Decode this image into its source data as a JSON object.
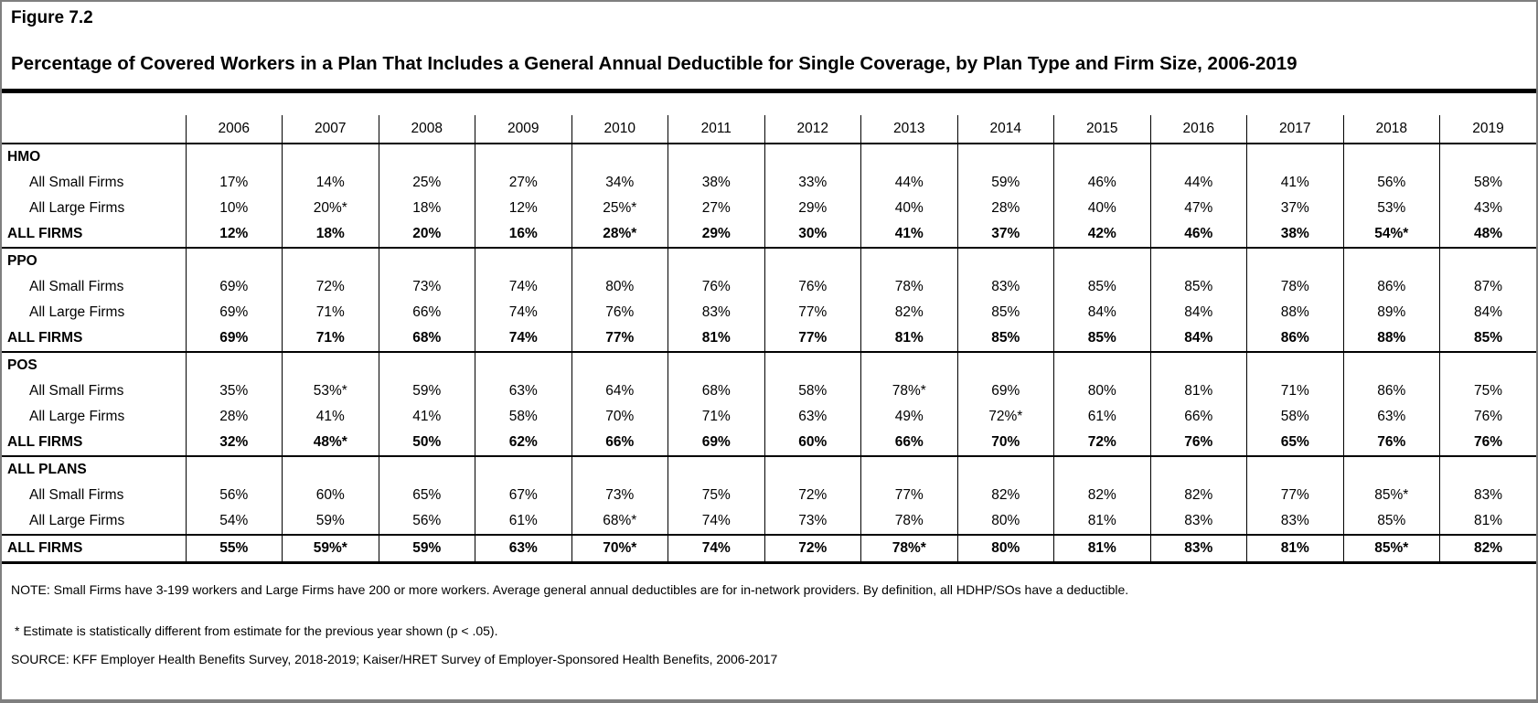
{
  "figure": {
    "label": "Figure 7.2",
    "title": "Percentage of Covered Workers in a Plan That Includes a General Annual Deductible for Single Coverage, by Plan Type and Firm Size, 2006-2019"
  },
  "chart_data": {
    "type": "table",
    "unit": "percent of covered workers",
    "years": [
      "2006",
      "2007",
      "2008",
      "2009",
      "2010",
      "2011",
      "2012",
      "2013",
      "2014",
      "2015",
      "2016",
      "2017",
      "2018",
      "2019"
    ],
    "sections": [
      {
        "name": "HMO",
        "rows": [
          {
            "label": "All Small Firms",
            "indent": true,
            "bold": false,
            "line_above": false,
            "values": [
              "17%",
              "14%",
              "25%",
              "27%",
              "34%",
              "38%",
              "33%",
              "44%",
              "59%",
              "46%",
              "44%",
              "41%",
              "56%",
              "58%"
            ]
          },
          {
            "label": "All Large Firms",
            "indent": true,
            "bold": false,
            "line_above": false,
            "values": [
              "10%",
              "20%*",
              "18%",
              "12%",
              "25%*",
              "27%",
              "29%",
              "40%",
              "28%",
              "40%",
              "47%",
              "37%",
              "53%",
              "43%"
            ]
          },
          {
            "label": "ALL FIRMS",
            "indent": false,
            "bold": true,
            "line_above": false,
            "values": [
              "12%",
              "18%",
              "20%",
              "16%",
              "28%*",
              "29%",
              "30%",
              "41%",
              "37%",
              "42%",
              "46%",
              "38%",
              "54%*",
              "48%"
            ]
          }
        ]
      },
      {
        "name": "PPO",
        "rows": [
          {
            "label": "All Small Firms",
            "indent": true,
            "bold": false,
            "line_above": false,
            "values": [
              "69%",
              "72%",
              "73%",
              "74%",
              "80%",
              "76%",
              "76%",
              "78%",
              "83%",
              "85%",
              "85%",
              "78%",
              "86%",
              "87%"
            ]
          },
          {
            "label": "All Large Firms",
            "indent": true,
            "bold": false,
            "line_above": false,
            "values": [
              "69%",
              "71%",
              "66%",
              "74%",
              "76%",
              "83%",
              "77%",
              "82%",
              "85%",
              "84%",
              "84%",
              "88%",
              "89%",
              "84%"
            ]
          },
          {
            "label": "ALL FIRMS",
            "indent": false,
            "bold": true,
            "line_above": false,
            "values": [
              "69%",
              "71%",
              "68%",
              "74%",
              "77%",
              "81%",
              "77%",
              "81%",
              "85%",
              "85%",
              "84%",
              "86%",
              "88%",
              "85%"
            ]
          }
        ]
      },
      {
        "name": "POS",
        "rows": [
          {
            "label": "All Small Firms",
            "indent": true,
            "bold": false,
            "line_above": false,
            "values": [
              "35%",
              "53%*",
              "59%",
              "63%",
              "64%",
              "68%",
              "58%",
              "78%*",
              "69%",
              "80%",
              "81%",
              "71%",
              "86%",
              "75%"
            ]
          },
          {
            "label": "All Large Firms",
            "indent": true,
            "bold": false,
            "line_above": false,
            "values": [
              "28%",
              "41%",
              "41%",
              "58%",
              "70%",
              "71%",
              "63%",
              "49%",
              "72%*",
              "61%",
              "66%",
              "58%",
              "63%",
              "76%"
            ]
          },
          {
            "label": "ALL FIRMS",
            "indent": false,
            "bold": true,
            "line_above": false,
            "values": [
              "32%",
              "48%*",
              "50%",
              "62%",
              "66%",
              "69%",
              "60%",
              "66%",
              "70%",
              "72%",
              "76%",
              "65%",
              "76%",
              "76%"
            ]
          }
        ]
      },
      {
        "name": "ALL PLANS",
        "rows": [
          {
            "label": "All Small Firms",
            "indent": true,
            "bold": false,
            "line_above": false,
            "values": [
              "56%",
              "60%",
              "65%",
              "67%",
              "73%",
              "75%",
              "72%",
              "77%",
              "82%",
              "82%",
              "82%",
              "77%",
              "85%*",
              "83%"
            ]
          },
          {
            "label": "All Large Firms",
            "indent": true,
            "bold": false,
            "line_above": false,
            "values": [
              "54%",
              "59%",
              "56%",
              "61%",
              "68%*",
              "74%",
              "73%",
              "78%",
              "80%",
              "81%",
              "83%",
              "83%",
              "85%",
              "81%"
            ]
          },
          {
            "label": "ALL FIRMS",
            "indent": false,
            "bold": true,
            "line_above": true,
            "values": [
              "55%",
              "59%*",
              "59%",
              "63%",
              "70%*",
              "74%",
              "72%",
              "78%*",
              "80%",
              "81%",
              "83%",
              "81%",
              "85%*",
              "82%"
            ]
          }
        ]
      }
    ]
  },
  "notes": {
    "note": "NOTE: Small Firms have 3-199 workers and Large Firms have 200 or more workers. Average general annual deductibles are for in-network providers. By definition, all HDHP/SOs have a deductible.",
    "asterisk": "* Estimate is statistically different from estimate for the previous year shown (p < .05).",
    "source": "SOURCE: KFF Employer Health Benefits Survey, 2018-2019; Kaiser/HRET Survey of Employer-Sponsored Health Benefits, 2006-2017"
  }
}
